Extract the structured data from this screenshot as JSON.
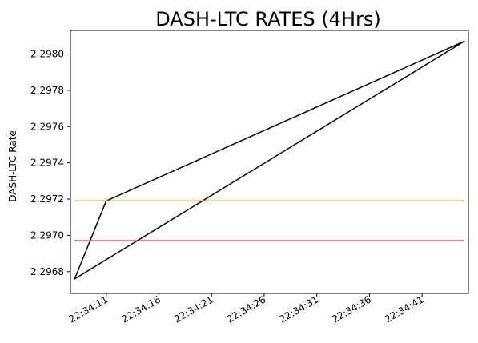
{
  "chart_data": {
    "type": "line",
    "title": "DASH-LTC RATES (4Hrs)",
    "xlabel": "",
    "ylabel": "DASH-LTC Rate",
    "x_ticks": [
      "22:34:11",
      "22:34:16",
      "22:34:21",
      "22:34:26",
      "22:34:31",
      "22:34:36",
      "22:34:41"
    ],
    "x_tick_seconds": [
      11,
      16,
      21,
      26,
      31,
      36,
      41
    ],
    "y_ticks": [
      "2.2968",
      "2.2970",
      "2.2972",
      "2.2974",
      "2.2976",
      "2.2978",
      "2.2980"
    ],
    "y_tick_values": [
      2.2968,
      2.297,
      2.2972,
      2.2974,
      2.2976,
      2.2978,
      2.298
    ],
    "xlim": [
      7.6,
      45.4
    ],
    "ylim": [
      2.29668,
      2.29813
    ],
    "grid": false,
    "series": [
      {
        "color": "#000000",
        "points": [
          {
            "x": 8.0,
            "y": 2.29676
          },
          {
            "x": 11.0,
            "y": 2.29719
          },
          {
            "x": 45.0,
            "y": 2.29807
          },
          {
            "x": 8.0,
            "y": 2.29676
          },
          {
            "x": 11.0,
            "y": 2.29719
          },
          {
            "x": 45.0,
            "y": 2.29807
          }
        ]
      },
      {
        "color": "#ffa500",
        "points": [
          {
            "x": 8.0,
            "y": 2.29719
          },
          {
            "x": 45.0,
            "y": 2.29719
          }
        ]
      },
      {
        "color": "#ff0000",
        "points": [
          {
            "x": 8.0,
            "y": 2.29697
          },
          {
            "x": 45.0,
            "y": 2.29697
          }
        ]
      }
    ]
  }
}
